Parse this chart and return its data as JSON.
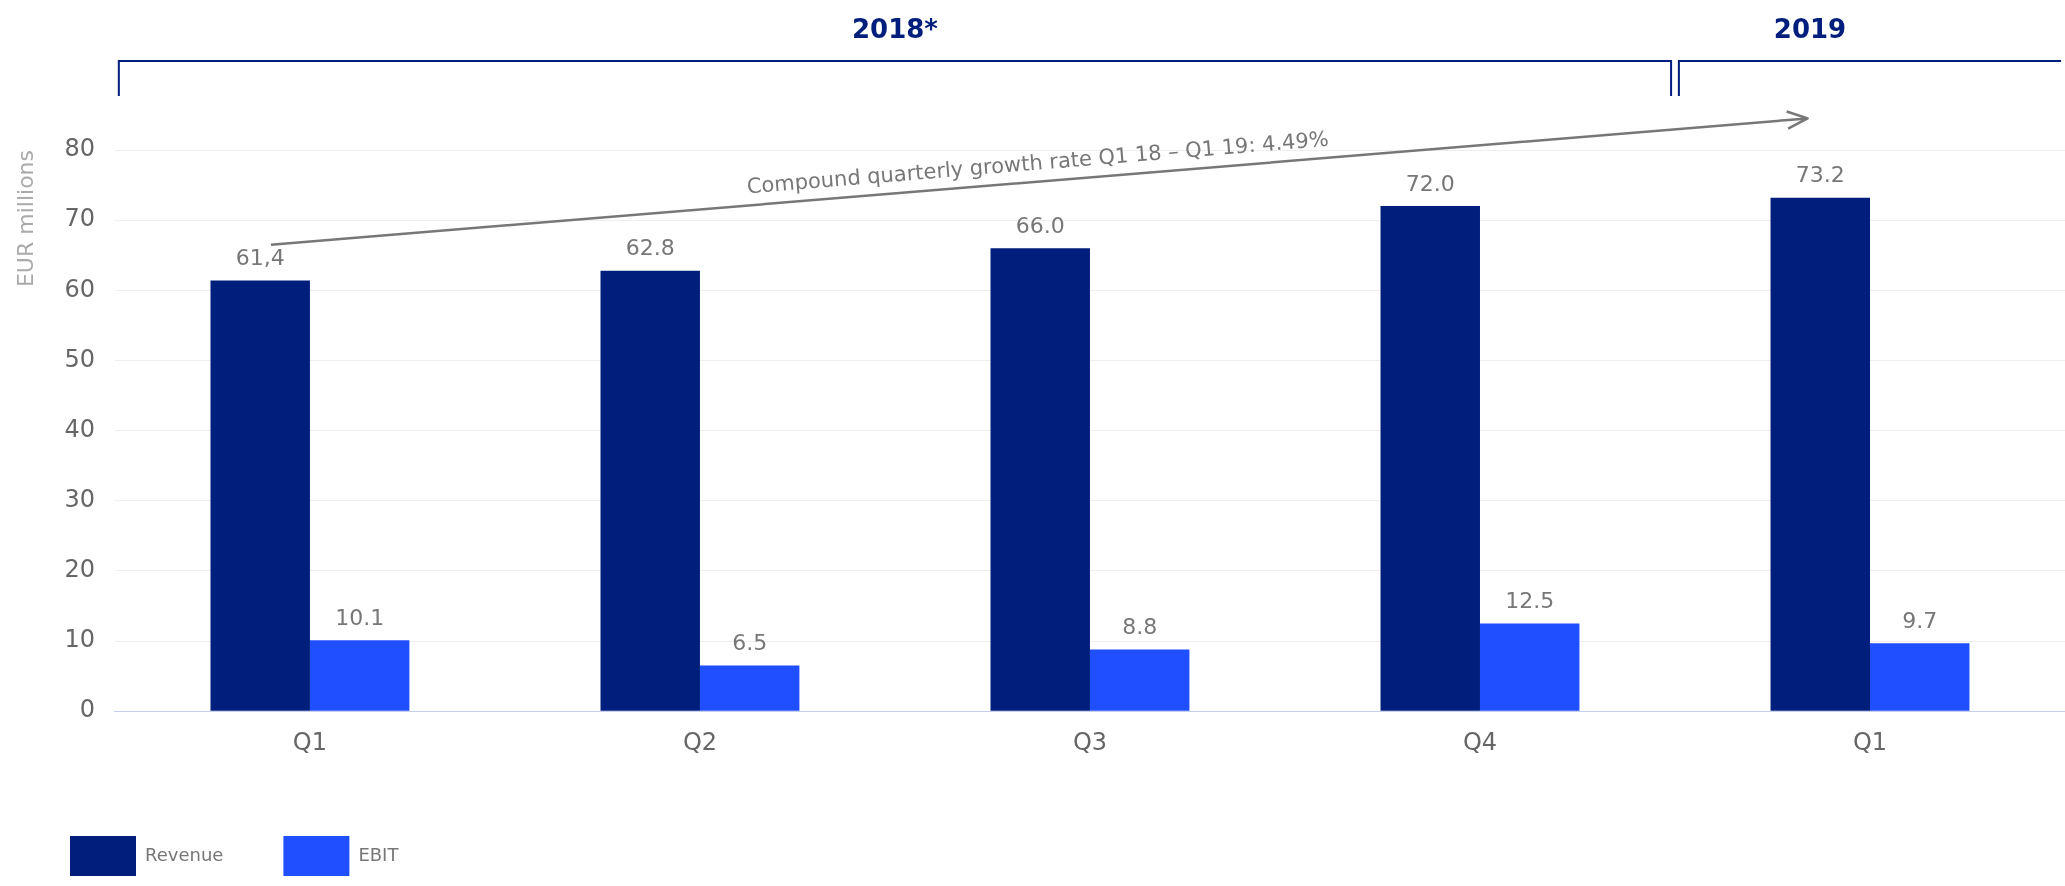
{
  "chart_data": {
    "type": "bar",
    "ylabel": "EUR millions",
    "categories": [
      "Q1",
      "Q2",
      "Q3",
      "Q4",
      "Q1"
    ],
    "series": [
      {
        "name": "Revenue",
        "color": "#001e7c",
        "values": [
          61.4,
          62.8,
          66.0,
          72.0,
          73.2
        ],
        "value_labels": [
          "61,4",
          "62.8",
          "66.0",
          "72.0",
          "73.2"
        ]
      },
      {
        "name": "EBIT",
        "color": "#1f4fff",
        "values": [
          10.1,
          6.5,
          8.8,
          12.5,
          9.7
        ],
        "value_labels": [
          "10.1",
          "6.5",
          "8.8",
          "12.5",
          "9.7"
        ]
      }
    ],
    "ylim": [
      0,
      80
    ],
    "yticks": [
      0,
      10,
      20,
      30,
      40,
      50,
      60,
      70,
      80
    ],
    "grid": "y",
    "legend": "bottom left",
    "annotations": [
      "2018*",
      "2019",
      "Compound quarterly growth rate Q1 18 – Q1 19: 4.49%"
    ]
  }
}
